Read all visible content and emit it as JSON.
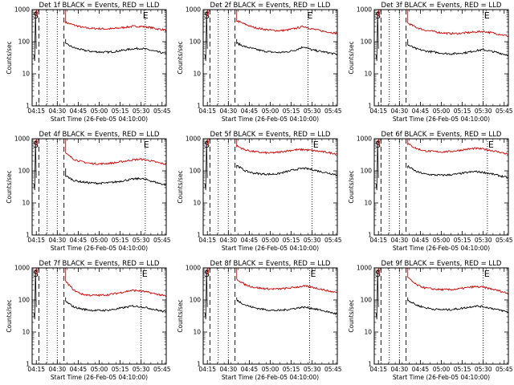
{
  "chart_data": [
    {
      "type": "line",
      "title": "Det 1f BLACK = Events, RED = LLD",
      "xlabel": "Start Time (26-Feb-05 04:10:00)",
      "ylabel": "Counts/sec",
      "yscale": "log",
      "ylim": [
        1,
        1000
      ],
      "yticks": [
        "1",
        "10",
        "100",
        "1000"
      ],
      "xlim": [
        4.2,
        5.8
      ],
      "xticks": [
        "04:15",
        "04:30",
        "04:45",
        "05:00",
        "05:15",
        "05:30",
        "05:45"
      ],
      "dotted_lines": [
        4.38,
        4.5,
        5.55
      ],
      "dashed_lines": [
        4.28,
        4.58
      ],
      "markers": [
        {
          "label": "S",
          "x": 4.2
        },
        {
          "label": "E",
          "x": 5.51
        }
      ],
      "series": [
        {
          "color": "#d40000",
          "x": [
            4.6,
            4.7,
            4.8,
            4.9,
            5.0,
            5.1,
            5.2,
            5.3,
            5.4,
            5.5,
            5.6,
            5.7,
            5.8
          ],
          "values": [
            400,
            330,
            280,
            260,
            255,
            250,
            260,
            280,
            300,
            300,
            280,
            250,
            230
          ]
        },
        {
          "color": "#000000",
          "x": [
            4.6,
            4.7,
            4.8,
            4.9,
            5.0,
            5.1,
            5.2,
            5.3,
            5.4,
            5.5,
            5.6,
            5.7,
            5.8
          ],
          "values": [
            85,
            65,
            55,
            50,
            48,
            47,
            50,
            55,
            60,
            62,
            55,
            48,
            42
          ]
        }
      ]
    },
    {
      "type": "line",
      "title": "Det 2f BLACK = Events, RED = LLD",
      "xlabel": "Start Time (26-Feb-05 04:10:00)",
      "ylabel": "Counts/sec",
      "yscale": "log",
      "ylim": [
        1,
        1000
      ],
      "yticks": [
        "1",
        "10",
        "100",
        "1000"
      ],
      "xlim": [
        4.2,
        5.8
      ],
      "xticks": [
        "04:15",
        "04:30",
        "04:45",
        "05:00",
        "05:15",
        "05:30",
        "05:45"
      ],
      "dotted_lines": [
        4.38,
        4.5,
        5.45
      ],
      "dashed_lines": [
        4.28,
        4.58
      ],
      "markers": [
        {
          "label": "S",
          "x": 4.2
        },
        {
          "label": "E",
          "x": 5.43
        }
      ],
      "series": [
        {
          "color": "#d40000",
          "x": [
            4.6,
            4.7,
            4.8,
            4.9,
            5.0,
            5.1,
            5.2,
            5.3,
            5.4,
            5.5,
            5.6,
            5.7,
            5.8
          ],
          "values": [
            450,
            350,
            280,
            250,
            230,
            220,
            230,
            260,
            300,
            250,
            220,
            200,
            180
          ]
        },
        {
          "color": "#000000",
          "x": [
            4.6,
            4.7,
            4.8,
            4.9,
            5.0,
            5.1,
            5.2,
            5.3,
            5.4,
            5.5,
            5.6,
            5.7,
            5.8
          ],
          "values": [
            90,
            70,
            60,
            52,
            48,
            46,
            48,
            55,
            70,
            55,
            50,
            45,
            40
          ]
        }
      ]
    },
    {
      "type": "line",
      "title": "Det 3f BLACK = Events, RED = LLD",
      "xlabel": "Start Time (26-Feb-05 04:10:00)",
      "ylabel": "Counts/sec",
      "yscale": "log",
      "ylim": [
        1,
        1000
      ],
      "yticks": [
        "1",
        "10",
        "100",
        "1000"
      ],
      "xlim": [
        4.2,
        5.8
      ],
      "xticks": [
        "04:15",
        "04:30",
        "04:45",
        "05:00",
        "05:15",
        "05:30",
        "05:45"
      ],
      "dotted_lines": [
        4.38,
        4.5,
        5.5
      ],
      "dashed_lines": [
        4.28,
        4.58
      ],
      "markers": [
        {
          "label": "S",
          "x": 4.2
        },
        {
          "label": "E",
          "x": 5.5
        }
      ],
      "series": [
        {
          "color": "#d40000",
          "x": [
            4.6,
            4.7,
            4.8,
            4.9,
            5.0,
            5.1,
            5.2,
            5.3,
            5.4,
            5.5,
            5.6,
            5.7,
            5.8
          ],
          "values": [
            380,
            280,
            230,
            210,
            190,
            180,
            180,
            190,
            200,
            210,
            190,
            170,
            150
          ]
        },
        {
          "color": "#000000",
          "x": [
            4.6,
            4.7,
            4.8,
            4.9,
            5.0,
            5.1,
            5.2,
            5.3,
            5.4,
            5.5,
            5.6,
            5.7,
            5.8
          ],
          "values": [
            80,
            60,
            52,
            48,
            44,
            42,
            43,
            46,
            52,
            56,
            50,
            44,
            38
          ]
        }
      ]
    },
    {
      "type": "line",
      "title": "Det 4f BLACK = Events, RED = LLD",
      "xlabel": "Start Time (26-Feb-05 04:10:00)",
      "ylabel": "Counts/sec",
      "yscale": "log",
      "ylim": [
        1,
        1000
      ],
      "yticks": [
        "1",
        "10",
        "100",
        "1000"
      ],
      "xlim": [
        4.2,
        5.8
      ],
      "xticks": [
        "04:15",
        "04:30",
        "04:45",
        "05:00",
        "05:15",
        "05:30",
        "05:45"
      ],
      "dotted_lines": [
        4.38,
        4.5,
        5.55
      ],
      "dashed_lines": [
        4.28,
        4.58
      ],
      "markers": [
        {
          "label": "S",
          "x": 4.2
        },
        {
          "label": "E",
          "x": 5.52
        }
      ],
      "series": [
        {
          "color": "#d40000",
          "x": [
            4.6,
            4.7,
            4.8,
            4.9,
            5.0,
            5.1,
            5.2,
            5.3,
            5.4,
            5.5,
            5.6,
            5.7,
            5.8
          ],
          "values": [
            350,
            230,
            190,
            170,
            165,
            170,
            180,
            200,
            220,
            230,
            210,
            180,
            160
          ]
        },
        {
          "color": "#000000",
          "x": [
            4.6,
            4.7,
            4.8,
            4.9,
            5.0,
            5.1,
            5.2,
            5.3,
            5.4,
            5.5,
            5.6,
            5.7,
            5.8
          ],
          "values": [
            70,
            50,
            45,
            42,
            41,
            42,
            45,
            50,
            55,
            58,
            50,
            42,
            36
          ]
        }
      ]
    },
    {
      "type": "line",
      "title": "Det 5f BLACK = Events, RED = LLD",
      "xlabel": "Start Time (26-Feb-05 04:10:00)",
      "ylabel": "Counts/sec",
      "yscale": "log",
      "ylim": [
        1,
        1000
      ],
      "yticks": [
        "1",
        "10",
        "100",
        "1000"
      ],
      "xlim": [
        4.2,
        5.8
      ],
      "xticks": [
        "04:15",
        "04:30",
        "04:45",
        "05:00",
        "05:15",
        "05:30",
        "05:45"
      ],
      "dotted_lines": [
        4.38,
        4.5,
        5.5
      ],
      "dashed_lines": [
        4.28,
        4.58
      ],
      "markers": [
        {
          "label": "S",
          "x": 4.2
        },
        {
          "label": "E",
          "x": 5.5
        }
      ],
      "series": [
        {
          "color": "#d40000",
          "x": [
            4.6,
            4.7,
            4.8,
            4.9,
            5.0,
            5.1,
            5.2,
            5.3,
            5.4,
            5.5,
            5.6,
            5.7,
            5.8
          ],
          "values": [
            600,
            450,
            400,
            370,
            360,
            380,
            420,
            450,
            460,
            430,
            400,
            370,
            340
          ]
        },
        {
          "color": "#000000",
          "x": [
            4.6,
            4.7,
            4.8,
            4.9,
            5.0,
            5.1,
            5.2,
            5.3,
            5.4,
            5.5,
            5.6,
            5.7,
            5.8
          ],
          "values": [
            150,
            100,
            85,
            80,
            78,
            82,
            95,
            110,
            120,
            110,
            95,
            85,
            75
          ]
        }
      ]
    },
    {
      "type": "line",
      "title": "Det 6f BLACK = Events, RED = LLD",
      "xlabel": "Start Time (26-Feb-05 04:10:00)",
      "ylabel": "Counts/sec",
      "yscale": "log",
      "ylim": [
        1,
        1000
      ],
      "yticks": [
        "1",
        "10",
        "100",
        "1000"
      ],
      "xlim": [
        4.2,
        5.8
      ],
      "xticks": [
        "04:15",
        "04:30",
        "04:45",
        "05:00",
        "05:15",
        "05:30",
        "05:45"
      ],
      "dotted_lines": [
        4.38,
        4.5,
        5.55
      ],
      "dashed_lines": [
        4.28,
        4.58
      ],
      "markers": [
        {
          "label": "S",
          "x": 4.2
        },
        {
          "label": "E",
          "x": 5.55
        }
      ],
      "series": [
        {
          "color": "#d40000",
          "x": [
            4.6,
            4.7,
            4.8,
            4.9,
            5.0,
            5.1,
            5.2,
            5.3,
            5.4,
            5.5,
            5.6,
            5.7,
            5.8
          ],
          "values": [
            700,
            500,
            420,
            400,
            390,
            400,
            430,
            470,
            500,
            480,
            430,
            380,
            330
          ]
        },
        {
          "color": "#000000",
          "x": [
            4.6,
            4.7,
            4.8,
            4.9,
            5.0,
            5.1,
            5.2,
            5.3,
            5.4,
            5.5,
            5.6,
            5.7,
            5.8
          ],
          "values": [
            140,
            95,
            80,
            75,
            73,
            75,
            80,
            88,
            95,
            90,
            80,
            70,
            60
          ]
        }
      ]
    },
    {
      "type": "line",
      "title": "Det 7f BLACK = Events, RED = LLD",
      "xlabel": "Start Time (26-Feb-05 04:10:00)",
      "ylabel": "Counts/sec",
      "yscale": "log",
      "ylim": [
        1,
        1000
      ],
      "yticks": [
        "1",
        "10",
        "100",
        "1000"
      ],
      "xlim": [
        4.2,
        5.8
      ],
      "xticks": [
        "04:15",
        "04:30",
        "04:45",
        "05:00",
        "05:15",
        "05:30",
        "05:45"
      ],
      "dotted_lines": [
        4.38,
        4.5,
        5.5
      ],
      "dashed_lines": [
        4.28,
        4.58
      ],
      "markers": [
        {
          "label": "S",
          "x": 4.2
        },
        {
          "label": "E",
          "x": 5.5
        }
      ],
      "series": [
        {
          "color": "#d40000",
          "x": [
            4.6,
            4.7,
            4.8,
            4.9,
            5.0,
            5.1,
            5.2,
            5.3,
            5.4,
            5.5,
            5.6,
            5.7,
            5.8
          ],
          "values": [
            380,
            200,
            150,
            140,
            140,
            145,
            160,
            180,
            200,
            190,
            170,
            150,
            130
          ]
        },
        {
          "color": "#000000",
          "x": [
            4.6,
            4.7,
            4.8,
            4.9,
            5.0,
            5.1,
            5.2,
            5.3,
            5.4,
            5.5,
            5.6,
            5.7,
            5.8
          ],
          "values": [
            90,
            60,
            52,
            48,
            47,
            48,
            52,
            58,
            65,
            62,
            55,
            48,
            42
          ]
        }
      ]
    },
    {
      "type": "line",
      "title": "Det 8f BLACK = Events, RED = LLD",
      "xlabel": "Start Time (26-Feb-05 04:10:00)",
      "ylabel": "Counts/sec",
      "yscale": "log",
      "ylim": [
        1,
        1000
      ],
      "yticks": [
        "1",
        "10",
        "100",
        "1000"
      ],
      "xlim": [
        4.2,
        5.8
      ],
      "xticks": [
        "04:15",
        "04:30",
        "04:45",
        "05:00",
        "05:15",
        "05:30",
        "05:45"
      ],
      "dotted_lines": [
        4.38,
        4.5,
        5.47
      ],
      "dashed_lines": [
        4.28,
        4.58
      ],
      "markers": [
        {
          "label": "S",
          "x": 4.2
        },
        {
          "label": "E",
          "x": 5.47
        }
      ],
      "series": [
        {
          "color": "#d40000",
          "x": [
            4.6,
            4.7,
            4.8,
            4.9,
            5.0,
            5.1,
            5.2,
            5.3,
            5.4,
            5.5,
            5.6,
            5.7,
            5.8
          ],
          "values": [
            450,
            300,
            250,
            230,
            220,
            220,
            230,
            250,
            270,
            250,
            220,
            190,
            170
          ]
        },
        {
          "color": "#000000",
          "x": [
            4.6,
            4.7,
            4.8,
            4.9,
            5.0,
            5.1,
            5.2,
            5.3,
            5.4,
            5.5,
            5.6,
            5.7,
            5.8
          ],
          "values": [
            100,
            70,
            58,
            52,
            48,
            47,
            50,
            55,
            60,
            55,
            48,
            42,
            36
          ]
        }
      ]
    },
    {
      "type": "line",
      "title": "Det 9f BLACK = Events, RED = LLD",
      "xlabel": "Start Time (26-Feb-05 04:10:00)",
      "ylabel": "Counts/sec",
      "yscale": "log",
      "ylim": [
        1,
        1000
      ],
      "yticks": [
        "1",
        "10",
        "100",
        "1000"
      ],
      "xlim": [
        4.2,
        5.8
      ],
      "xticks": [
        "04:15",
        "04:30",
        "04:45",
        "05:00",
        "05:15",
        "05:30",
        "05:45"
      ],
      "dotted_lines": [
        4.38,
        4.5,
        5.5
      ],
      "dashed_lines": [
        4.28,
        4.58
      ],
      "markers": [
        {
          "label": "S",
          "x": 4.2
        },
        {
          "label": "E",
          "x": 5.5
        }
      ],
      "series": [
        {
          "color": "#d40000",
          "x": [
            4.6,
            4.7,
            4.8,
            4.9,
            5.0,
            5.1,
            5.2,
            5.3,
            5.4,
            5.5,
            5.6,
            5.7,
            5.8
          ],
          "values": [
            500,
            300,
            240,
            220,
            210,
            210,
            220,
            240,
            260,
            250,
            220,
            190,
            160
          ]
        },
        {
          "color": "#000000",
          "x": [
            4.6,
            4.7,
            4.8,
            4.9,
            5.0,
            5.1,
            5.2,
            5.3,
            5.4,
            5.5,
            5.6,
            5.7,
            5.8
          ],
          "values": [
            100,
            70,
            58,
            52,
            50,
            50,
            53,
            58,
            65,
            62,
            55,
            48,
            42
          ]
        }
      ]
    }
  ]
}
